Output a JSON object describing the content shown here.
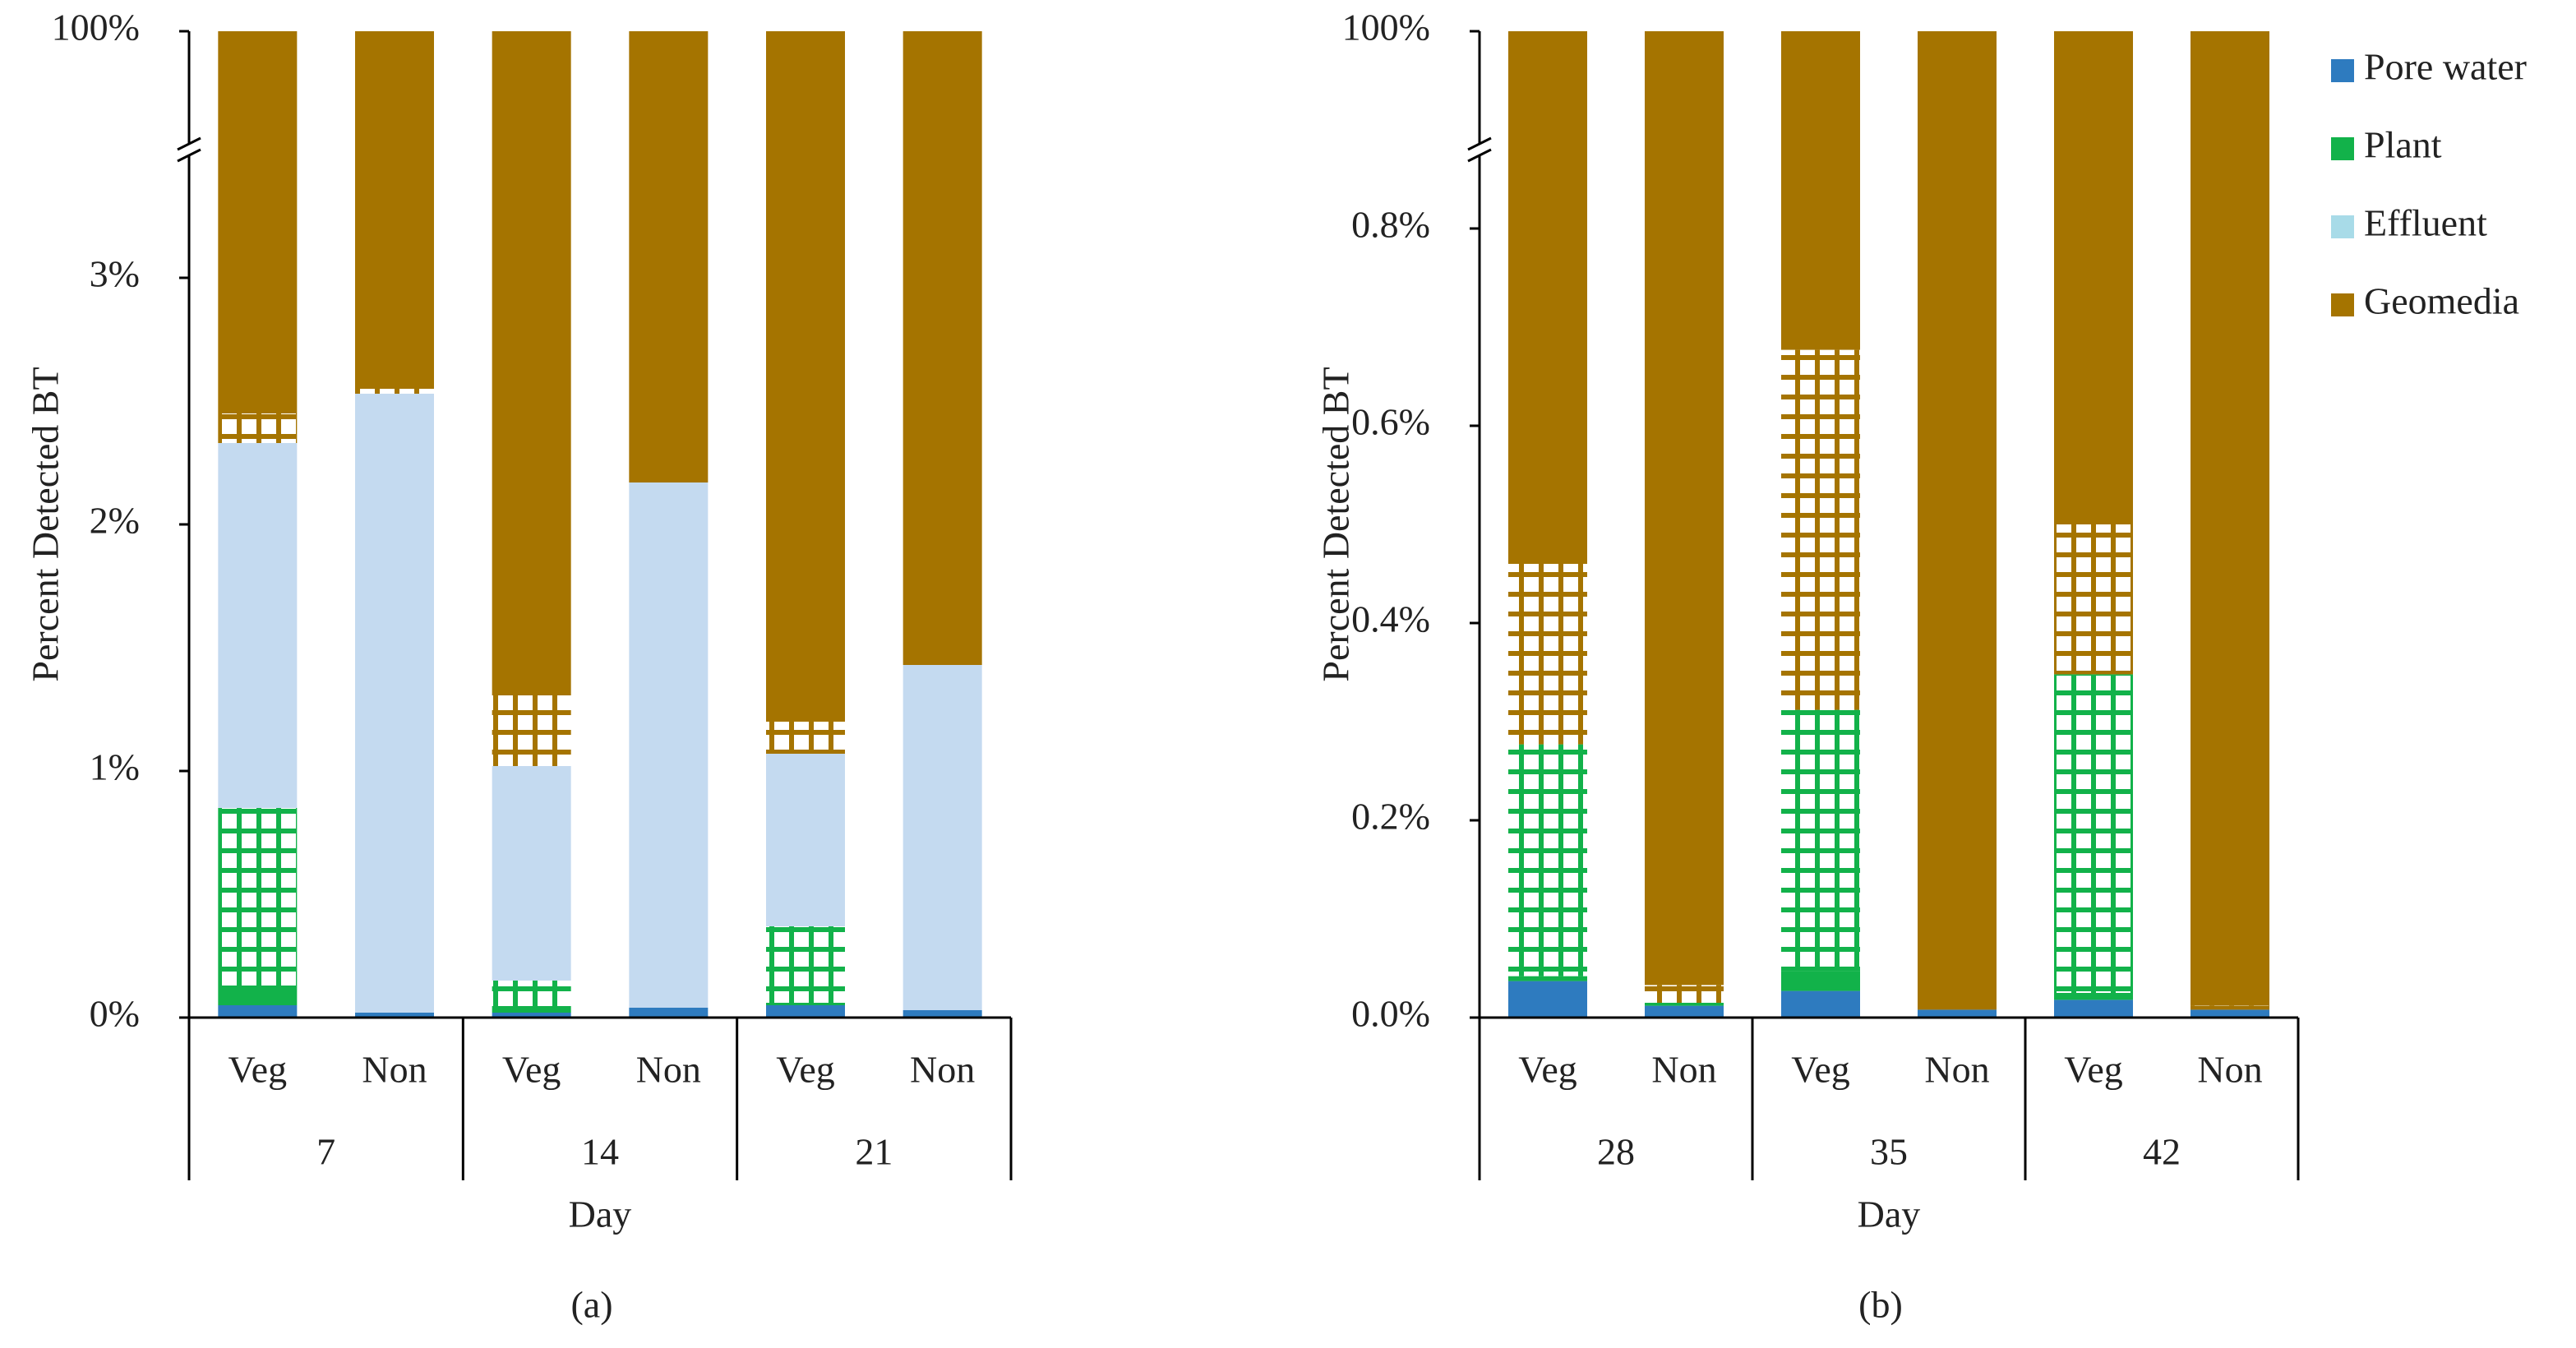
{
  "legend": [
    {
      "name": "Pore water",
      "color": "#2e7bbf"
    },
    {
      "name": "Plant",
      "color": "#12b24a"
    },
    {
      "name": "Effluent",
      "color": "#a8dbe8"
    },
    {
      "name": "Geomedia",
      "color": "#a57400"
    }
  ],
  "chart_data": [
    {
      "type": "bar",
      "stacked": true,
      "panel_label": "(a)",
      "y_label": "Percent Detected BT",
      "x_label": "Day",
      "categories": [
        "Veg",
        "Non",
        "Veg",
        "Non",
        "Veg",
        "Non"
      ],
      "groups": [
        "7",
        "14",
        "21"
      ],
      "ylim": [
        0,
        100
      ],
      "axis_break": 3.5,
      "yticks": [
        {
          "value": 0,
          "label": "0%"
        },
        {
          "value": 1,
          "label": "1%"
        },
        {
          "value": 2,
          "label": "2%"
        },
        {
          "value": 3,
          "label": "3%"
        },
        {
          "value": 100,
          "label": "100%"
        }
      ],
      "series": [
        {
          "color": "#2e7bbf",
          "hatched": false,
          "values": [
            0.05,
            0.02,
            0.02,
            0.04,
            0.05,
            0.03
          ]
        },
        {
          "color": "#12b24a",
          "hatched": false,
          "values": [
            0.08,
            0,
            0.01,
            0,
            0.01,
            0
          ]
        },
        {
          "color": "#12b24a",
          "hatched": true,
          "values": [
            0.72,
            0,
            0.12,
            0,
            0.31,
            0
          ]
        },
        {
          "color": "#c4daf0",
          "hatched": false,
          "values": [
            1.48,
            2.51,
            0.87,
            2.13,
            0.7,
            1.4
          ]
        },
        {
          "color": "#a57400",
          "hatched": true,
          "values": [
            0.12,
            0.02,
            0.3,
            0,
            0.13,
            0
          ]
        },
        {
          "color": "#a57400",
          "hatched": false,
          "values": [
            97.55,
            97.45,
            98.68,
            97.83,
            98.8,
            98.57
          ]
        }
      ]
    },
    {
      "type": "bar",
      "stacked": true,
      "panel_label": "(b)",
      "y_label": "Percent Detected BT",
      "x_label": "Day",
      "categories": [
        "Veg",
        "Non",
        "Veg",
        "Non",
        "Veg",
        "Non"
      ],
      "groups": [
        "28",
        "35",
        "42"
      ],
      "ylim": [
        0,
        100
      ],
      "axis_break": 0.875,
      "yticks": [
        {
          "value": 0,
          "label": "0.0%"
        },
        {
          "value": 0.2,
          "label": "0.2%"
        },
        {
          "value": 0.4,
          "label": "0.4%"
        },
        {
          "value": 0.6,
          "label": "0.6%"
        },
        {
          "value": 0.8,
          "label": "0.8%"
        },
        {
          "value": 100,
          "label": "100%"
        }
      ],
      "series": [
        {
          "color": "#2e7bbf",
          "hatched": false,
          "values": [
            0.037,
            0.012,
            0.027,
            0.008,
            0.018,
            0.008
          ]
        },
        {
          "color": "#12b24a",
          "hatched": false,
          "values": [
            0.005,
            0.003,
            0.02,
            0,
            0.007,
            0
          ]
        },
        {
          "color": "#12b24a",
          "hatched": true,
          "values": [
            0.235,
            0,
            0.265,
            0,
            0.323,
            0
          ]
        },
        {
          "color": "#c4daf0",
          "hatched": false,
          "values": [
            0,
            0,
            0,
            0,
            0,
            0
          ]
        },
        {
          "color": "#a57400",
          "hatched": true,
          "values": [
            0.183,
            0.018,
            0.365,
            0,
            0.152,
            0.004
          ]
        },
        {
          "color": "#a57400",
          "hatched": false,
          "values": [
            99.54,
            99.967,
            99.323,
            99.992,
            99.5,
            99.988
          ]
        }
      ]
    }
  ]
}
